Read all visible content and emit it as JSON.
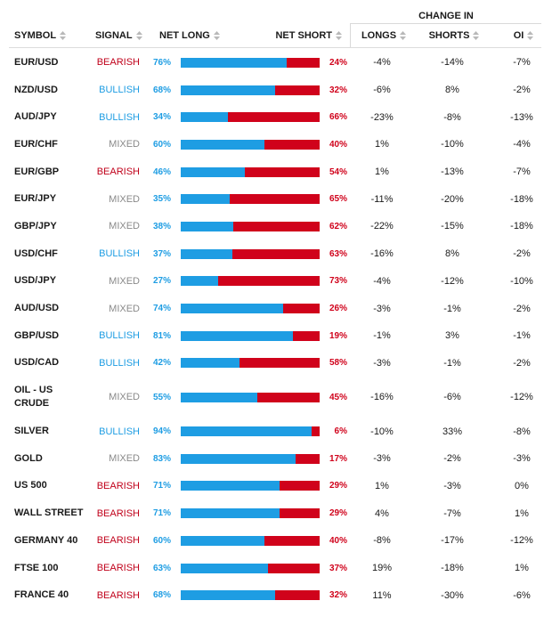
{
  "header": {
    "change_in": "CHANGE IN",
    "symbol": "SYMBOL",
    "signal": "SIGNAL",
    "net_long": "NET LONG",
    "net_short": "NET SHORT",
    "longs": "LONGS",
    "shorts": "SHORTS",
    "oi": "OI"
  },
  "colors": {
    "long_bar": "#1e9de3",
    "short_bar": "#d0021b",
    "bearish": "#c0001a",
    "bullish": "#1e9de3",
    "mixed": "#8a8a8a"
  },
  "rows": [
    {
      "symbol": "EUR/USD",
      "signal": "BEARISH",
      "net_long": "76%",
      "net_short": "24%",
      "longs": "-4%",
      "shorts": "-14%",
      "oi": "-7%",
      "long_fraction": 0.76
    },
    {
      "symbol": "NZD/USD",
      "signal": "BULLISH",
      "net_long": "68%",
      "net_short": "32%",
      "longs": "-6%",
      "shorts": "8%",
      "oi": "-2%",
      "long_fraction": 0.68
    },
    {
      "symbol": "AUD/JPY",
      "signal": "BULLISH",
      "net_long": "34%",
      "net_short": "66%",
      "longs": "-23%",
      "shorts": "-8%",
      "oi": "-13%",
      "long_fraction": 0.34
    },
    {
      "symbol": "EUR/CHF",
      "signal": "MIXED",
      "net_long": "60%",
      "net_short": "40%",
      "longs": "1%",
      "shorts": "-10%",
      "oi": "-4%",
      "long_fraction": 0.6
    },
    {
      "symbol": "EUR/GBP",
      "signal": "BEARISH",
      "net_long": "46%",
      "net_short": "54%",
      "longs": "1%",
      "shorts": "-13%",
      "oi": "-7%",
      "long_fraction": 0.46
    },
    {
      "symbol": "EUR/JPY",
      "signal": "MIXED",
      "net_long": "35%",
      "net_short": "65%",
      "longs": "-11%",
      "shorts": "-20%",
      "oi": "-18%",
      "long_fraction": 0.35
    },
    {
      "symbol": "GBP/JPY",
      "signal": "MIXED",
      "net_long": "38%",
      "net_short": "62%",
      "longs": "-22%",
      "shorts": "-15%",
      "oi": "-18%",
      "long_fraction": 0.38
    },
    {
      "symbol": "USD/CHF",
      "signal": "BULLISH",
      "net_long": "37%",
      "net_short": "63%",
      "longs": "-16%",
      "shorts": "8%",
      "oi": "-2%",
      "long_fraction": 0.37
    },
    {
      "symbol": "USD/JPY",
      "signal": "MIXED",
      "net_long": "27%",
      "net_short": "73%",
      "longs": "-4%",
      "shorts": "-12%",
      "oi": "-10%",
      "long_fraction": 0.27
    },
    {
      "symbol": "AUD/USD",
      "signal": "MIXED",
      "net_long": "74%",
      "net_short": "26%",
      "longs": "-3%",
      "shorts": "-1%",
      "oi": "-2%",
      "long_fraction": 0.74
    },
    {
      "symbol": "GBP/USD",
      "signal": "BULLISH",
      "net_long": "81%",
      "net_short": "19%",
      "longs": "-1%",
      "shorts": "3%",
      "oi": "-1%",
      "long_fraction": 0.81
    },
    {
      "symbol": "USD/CAD",
      "signal": "BULLISH",
      "net_long": "42%",
      "net_short": "58%",
      "longs": "-3%",
      "shorts": "-1%",
      "oi": "-2%",
      "long_fraction": 0.42
    },
    {
      "symbol": "OIL - US CRUDE",
      "signal": "MIXED",
      "net_long": "55%",
      "net_short": "45%",
      "longs": "-16%",
      "shorts": "-6%",
      "oi": "-12%",
      "long_fraction": 0.55
    },
    {
      "symbol": "SILVER",
      "signal": "BULLISH",
      "net_long": "94%",
      "net_short": "6%",
      "longs": "-10%",
      "shorts": "33%",
      "oi": "-8%",
      "long_fraction": 0.94
    },
    {
      "symbol": "GOLD",
      "signal": "MIXED",
      "net_long": "83%",
      "net_short": "17%",
      "longs": "-3%",
      "shorts": "-2%",
      "oi": "-3%",
      "long_fraction": 0.83
    },
    {
      "symbol": "US 500",
      "signal": "BEARISH",
      "net_long": "71%",
      "net_short": "29%",
      "longs": "1%",
      "shorts": "-3%",
      "oi": "0%",
      "long_fraction": 0.71
    },
    {
      "symbol": "WALL STREET",
      "signal": "BEARISH",
      "net_long": "71%",
      "net_short": "29%",
      "longs": "4%",
      "shorts": "-7%",
      "oi": "1%",
      "long_fraction": 0.71
    },
    {
      "symbol": "GERMANY 40",
      "signal": "BEARISH",
      "net_long": "60%",
      "net_short": "40%",
      "longs": "-8%",
      "shorts": "-17%",
      "oi": "-12%",
      "long_fraction": 0.6
    },
    {
      "symbol": "FTSE 100",
      "signal": "BEARISH",
      "net_long": "63%",
      "net_short": "37%",
      "longs": "19%",
      "shorts": "-18%",
      "oi": "1%",
      "long_fraction": 0.63
    },
    {
      "symbol": "FRANCE 40",
      "signal": "BEARISH",
      "net_long": "68%",
      "net_short": "32%",
      "longs": "11%",
      "shorts": "-30%",
      "oi": "-6%",
      "long_fraction": 0.68
    }
  ]
}
